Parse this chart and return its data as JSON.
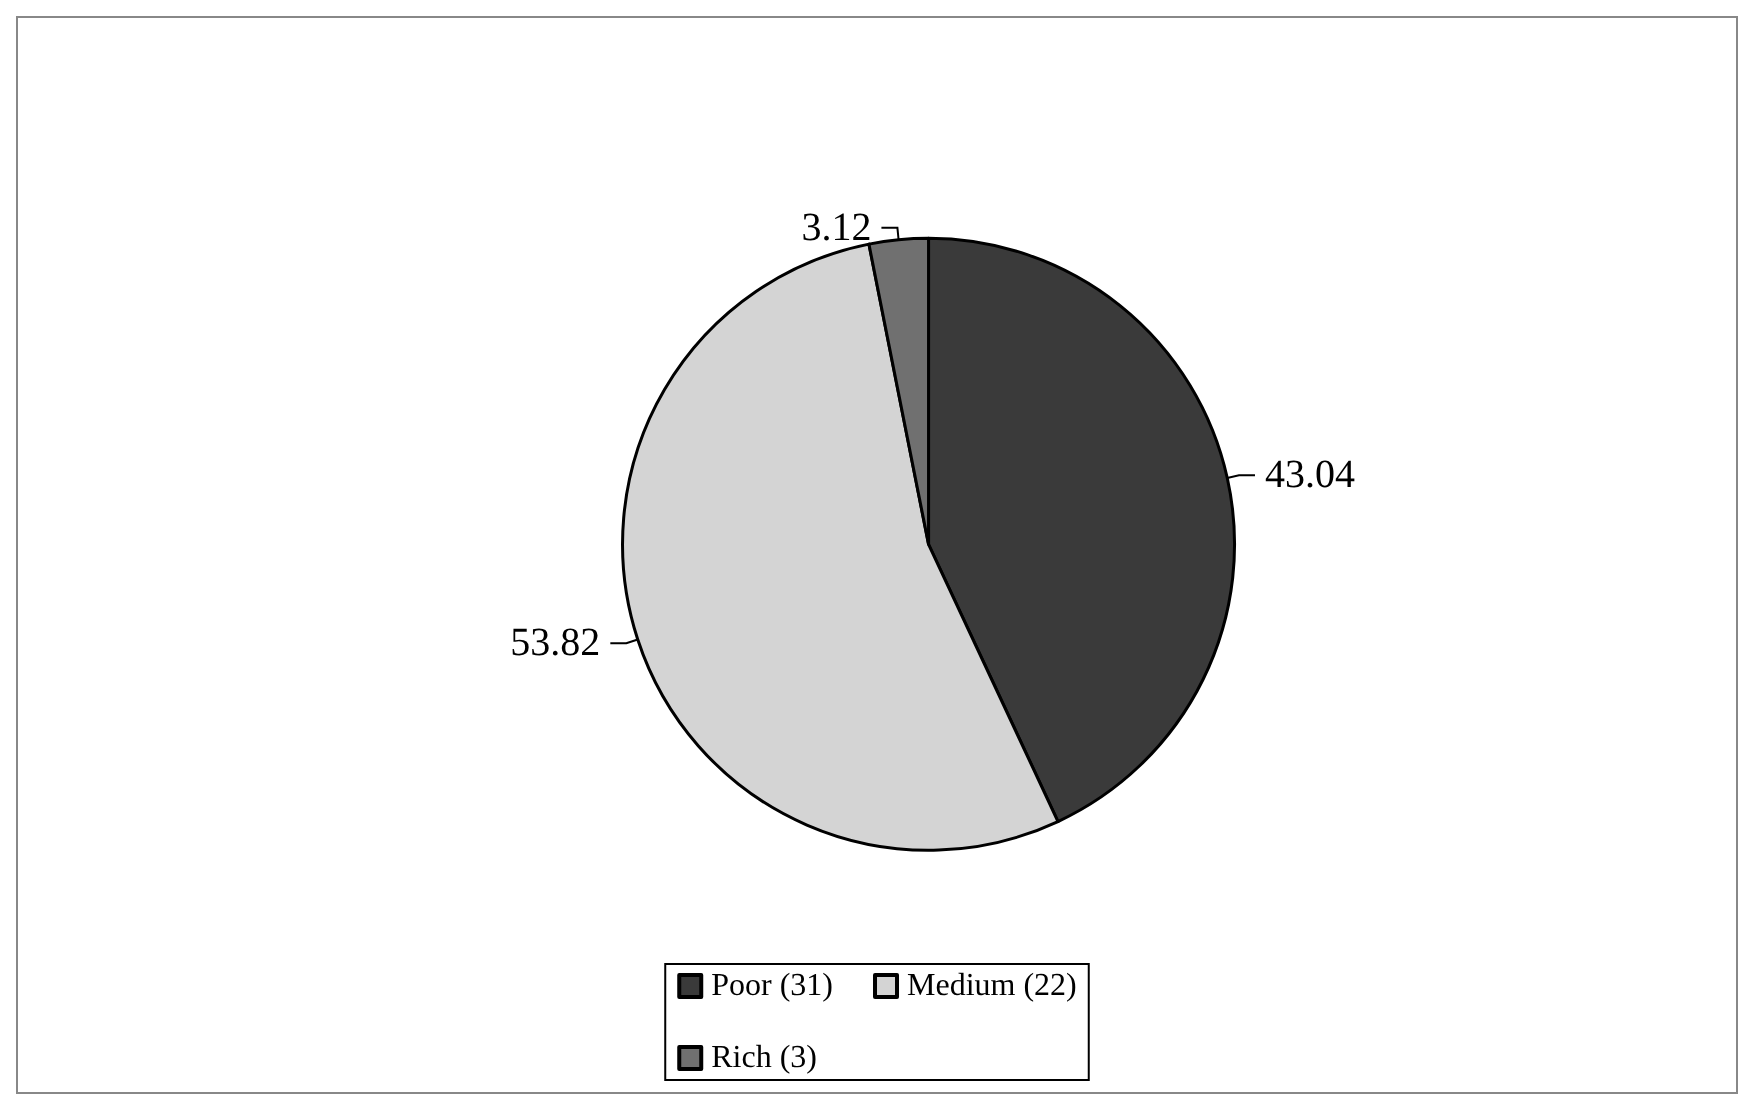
{
  "chart_data": {
    "type": "pie",
    "categories": [
      "Poor (31)",
      "Medium (22)",
      "Rich (3)"
    ],
    "values": [
      43.04,
      53.82,
      3.12
    ],
    "colors": [
      "#3a3a3a",
      "#d4d4d4",
      "#707070"
    ],
    "data_labels": true,
    "legend": "bottom"
  }
}
